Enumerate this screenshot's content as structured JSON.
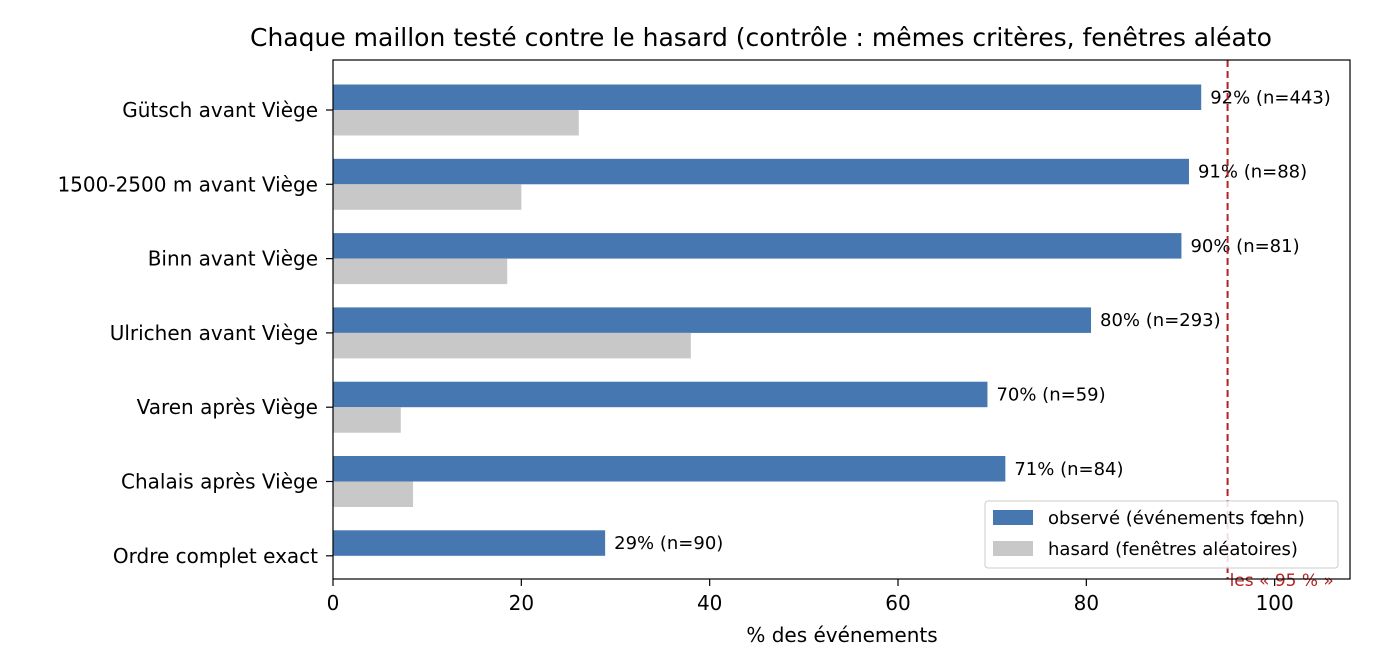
{
  "chart_data": {
    "type": "bar",
    "orientation": "horizontal",
    "title": "Chaque maillon testé contre le hasard (contrôle : mêmes critères, fenêtres aléato",
    "xlabel": "% des événements",
    "ylabel": "",
    "xlim": [
      0,
      108
    ],
    "xticks": [
      0,
      20,
      40,
      60,
      80,
      100
    ],
    "xtick_labels": [
      "0",
      "20",
      "40",
      "60",
      "80",
      "100"
    ],
    "grid": false,
    "legend_position": "lower right",
    "categories": [
      "Gütsch avant Viège",
      "1500-2500 m avant Viège",
      "Binn avant Viège",
      "Ulrichen avant Viège",
      "Varen après Viège",
      "Chalais après Viège",
      "Ordre complet exact"
    ],
    "series": [
      {
        "name": "observé (événements fœhn)",
        "color": "#4677b1",
        "values": [
          92.2,
          90.9,
          90.1,
          80.5,
          69.5,
          71.4,
          28.9
        ],
        "data_labels": [
          "92%  (n=443)",
          "91%  (n=88)",
          "90%  (n=81)",
          "80%  (n=293)",
          "70%  (n=59)",
          "71%  (n=84)",
          "29%  (n=90)"
        ]
      },
      {
        "name": "hasard (fenêtres aléatoires)",
        "color": "#c8c8c8",
        "values": [
          26.1,
          20.0,
          18.5,
          38.0,
          7.2,
          8.5,
          null
        ]
      }
    ],
    "reference_line": {
      "value": 95,
      "label": "les « 95 % »",
      "color": "#b22222",
      "style": "dashed"
    }
  }
}
